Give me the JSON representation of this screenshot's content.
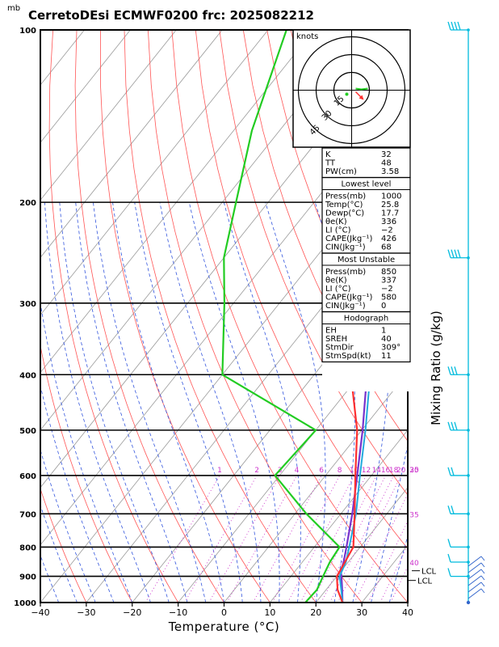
{
  "header": {
    "unit_mb": "mb",
    "title": "CerretoDEsi ECMWF0200  frc: 2025082212"
  },
  "chart_data": {
    "type": "skewt",
    "xlabel": "Temperature (°C)",
    "ylabel_right": "Mixing Ratio (g/kg)",
    "x_ticks": [
      -40,
      -30,
      -20,
      -10,
      0,
      10,
      20,
      30,
      40
    ],
    "p_ticks": [
      100,
      200,
      300,
      400,
      500,
      600,
      700,
      800,
      900,
      1000
    ],
    "xlim": [
      -40,
      40
    ],
    "plim": [
      1000,
      100
    ],
    "mixing_ratio_labels": [
      "1",
      "2",
      "3",
      "4",
      "6",
      "8",
      "10",
      "12",
      "14",
      "16",
      "18",
      "20",
      "25",
      "30",
      "35",
      "40"
    ],
    "lcl_labels": [
      "LCL",
      "LCL"
    ],
    "temperature": [
      {
        "p": 1000,
        "t": 25.8
      },
      {
        "p": 950,
        "t": 22.5
      },
      {
        "p": 900,
        "t": 20.0
      },
      {
        "p": 850,
        "t": 19.3
      },
      {
        "p": 800,
        "t": 18.5
      },
      {
        "p": 700,
        "t": 13.0
      },
      {
        "p": 600,
        "t": 6.5
      },
      {
        "p": 500,
        "t": -1.0
      },
      {
        "p": 400,
        "t": -12.0
      },
      {
        "p": 300,
        "t": -27.0
      },
      {
        "p": 250,
        "t": -37.0
      },
      {
        "p": 200,
        "t": -43.0
      },
      {
        "p": 150,
        "t": -50.0
      },
      {
        "p": 100,
        "t": -56.0
      }
    ],
    "dewpoint": [
      {
        "p": 1000,
        "t": 17.7
      },
      {
        "p": 950,
        "t": 18.0
      },
      {
        "p": 900,
        "t": 17.0
      },
      {
        "p": 850,
        "t": 16.0
      },
      {
        "p": 800,
        "t": 15.5
      },
      {
        "p": 700,
        "t": 2.5
      },
      {
        "p": 600,
        "t": -11.0
      },
      {
        "p": 500,
        "t": -10.0
      },
      {
        "p": 400,
        "t": -40.0
      },
      {
        "p": 300,
        "t": -52.0
      },
      {
        "p": 250,
        "t": -60.0
      },
      {
        "p": 200,
        "t": -67.0
      },
      {
        "p": 150,
        "t": -76.0
      },
      {
        "p": 100,
        "t": -86.0
      }
    ],
    "parcel": [
      {
        "p": 1000,
        "t": 25.8
      },
      {
        "p": 950,
        "t": 23.5
      },
      {
        "p": 900,
        "t": 21.0
      },
      {
        "p": 880,
        "t": 19.9
      },
      {
        "p": 850,
        "t": 19.0
      },
      {
        "p": 800,
        "t": 17.0
      },
      {
        "p": 700,
        "t": 12.5
      },
      {
        "p": 600,
        "t": 6.9
      },
      {
        "p": 500,
        "t": 0.2
      },
      {
        "p": 400,
        "t": -8.5
      },
      {
        "p": 300,
        "t": -21.0
      },
      {
        "p": 250,
        "t": -30.0
      },
      {
        "p": 200,
        "t": -41.0
      },
      {
        "p": 150,
        "t": -56.0
      },
      {
        "p": 100,
        "t": -76.0
      }
    ],
    "virtual": [
      {
        "p": 1000,
        "t": 25.8
      },
      {
        "p": 950,
        "t": 23.3
      },
      {
        "p": 900,
        "t": 20.6
      },
      {
        "p": 850,
        "t": 19.5
      },
      {
        "p": 800,
        "t": 17.6
      },
      {
        "p": 700,
        "t": 13.3
      },
      {
        "p": 600,
        "t": 7.5
      },
      {
        "p": 500,
        "t": 0.8
      },
      {
        "p": 400,
        "t": -7.8
      },
      {
        "p": 300,
        "t": -20.3
      },
      {
        "p": 250,
        "t": -29.4
      },
      {
        "p": 200,
        "t": -40.4
      },
      {
        "p": 150,
        "t": -55.5
      },
      {
        "p": 100,
        "t": -75.5
      }
    ]
  },
  "hodograph": {
    "label": "knots",
    "rings": [
      "15",
      "30",
      "45"
    ]
  },
  "indices": {
    "top": [
      {
        "k": "K",
        "v": "32"
      },
      {
        "k": "TT",
        "v": "48"
      },
      {
        "k": "PW(cm)",
        "v": "3.58"
      }
    ],
    "lowest": {
      "title": "Lowest level",
      "rows": [
        {
          "k": "Press(mb)",
          "v": "1000"
        },
        {
          "k": "Temp(°C)",
          "v": "25.8"
        },
        {
          "k": "Dewp(°C)",
          "v": "17.7"
        },
        {
          "k": "θe(K)",
          "v": "336"
        },
        {
          "k": "LI (°C)",
          "v": "−2"
        },
        {
          "k": "CAPE(Jkg⁻¹)",
          "v": "426"
        },
        {
          "k": "CIN(Jkg⁻¹)",
          "v": "68"
        }
      ]
    },
    "unstable": {
      "title": "Most Unstable",
      "rows": [
        {
          "k": "Press(mb)",
          "v": "850"
        },
        {
          "k": "θe(K)",
          "v": "337"
        },
        {
          "k": "LI (°C)",
          "v": "−2"
        },
        {
          "k": "CAPE(Jkg⁻¹)",
          "v": "580"
        },
        {
          "k": "CIN(Jkg⁻¹)",
          "v": "0"
        }
      ]
    },
    "hodo": {
      "title": "Hodograph",
      "rows": [
        {
          "k": "EH",
          "v": "1"
        },
        {
          "k": "SREH",
          "v": "40"
        },
        {
          "k": "StmDir",
          "v": "309°"
        },
        {
          "k": "StmSpd(kt)",
          "v": "11"
        }
      ]
    }
  },
  "colors": {
    "temperature": "#ff3030",
    "dewpoint": "#22cc22",
    "parcel": "#7733cc",
    "virtual": "#22aadd",
    "isotherm": "#9a9a9a",
    "dry_adiabat": "#ff5555",
    "moist_adiabat": "#3355dd",
    "mixing_ratio": "#cc33cc",
    "wind": "#00bbdd"
  }
}
